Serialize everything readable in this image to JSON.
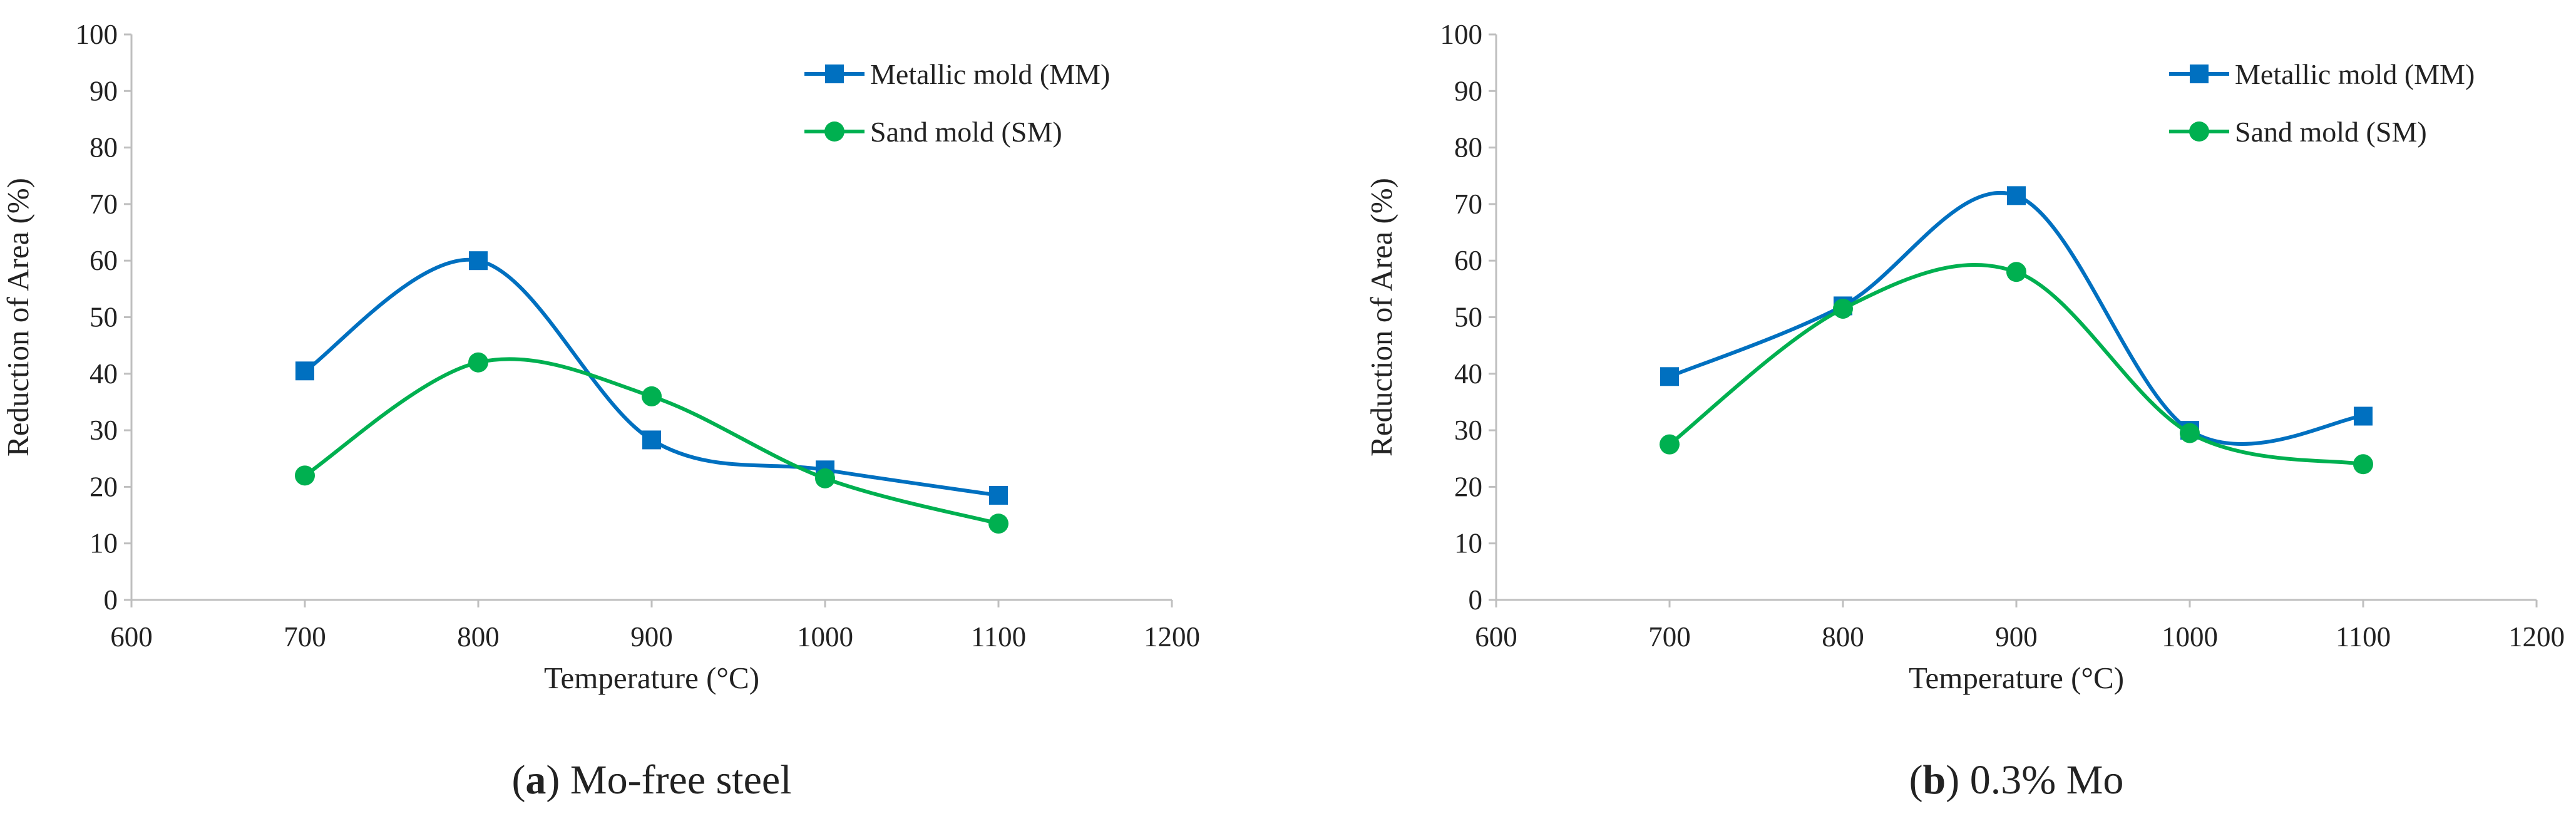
{
  "chart_data": [
    {
      "type": "line",
      "panel": "a",
      "title": "",
      "xlabel": "Temperature (°C)",
      "ylabel": "Reduction of Area (%)",
      "xlim": [
        600,
        1200
      ],
      "ylim": [
        0,
        100
      ],
      "xticks": [
        600,
        700,
        800,
        900,
        1000,
        1100,
        1200
      ],
      "yticks": [
        0,
        10,
        20,
        30,
        40,
        50,
        60,
        70,
        80,
        90,
        100
      ],
      "grid": false,
      "smooth": true,
      "legend_position": "top-right",
      "caption_prefix": "a",
      "caption_text": " Mo-free steel",
      "caption_open": "(",
      "caption_close": ")",
      "series": [
        {
          "name": "Metallic mold (MM)",
          "color": "#0070C0",
          "marker": "square",
          "x": [
            700,
            800,
            900,
            1000,
            1100
          ],
          "values": [
            40.5,
            60,
            28.3,
            23,
            18.5
          ]
        },
        {
          "name": "Sand mold (SM)",
          "color": "#00B050",
          "marker": "circle",
          "x": [
            700,
            800,
            900,
            1000,
            1100
          ],
          "values": [
            22,
            42,
            36,
            21.5,
            13.5
          ]
        }
      ]
    },
    {
      "type": "line",
      "panel": "b",
      "title": "",
      "xlabel": "Temperature (°C)",
      "ylabel": "Reduction of Area (%)",
      "xlim": [
        600,
        1200
      ],
      "ylim": [
        0,
        100
      ],
      "xticks": [
        600,
        700,
        800,
        900,
        1000,
        1100,
        1200
      ],
      "yticks": [
        0,
        10,
        20,
        30,
        40,
        50,
        60,
        70,
        80,
        90,
        100
      ],
      "grid": false,
      "smooth": true,
      "legend_position": "top-right",
      "caption_prefix": "b",
      "caption_text": " 0.3% Mo",
      "caption_open": "(",
      "caption_close": ")",
      "series": [
        {
          "name": "Metallic mold (MM)",
          "color": "#0070C0",
          "marker": "square",
          "x": [
            700,
            800,
            900,
            1000,
            1100
          ],
          "values": [
            39.5,
            52,
            71.5,
            30,
            32.5
          ]
        },
        {
          "name": "Sand mold (SM)",
          "color": "#00B050",
          "marker": "circle",
          "x": [
            700,
            800,
            900,
            1000,
            1100
          ],
          "values": [
            27.5,
            51.5,
            58,
            29.5,
            24
          ]
        }
      ]
    }
  ]
}
